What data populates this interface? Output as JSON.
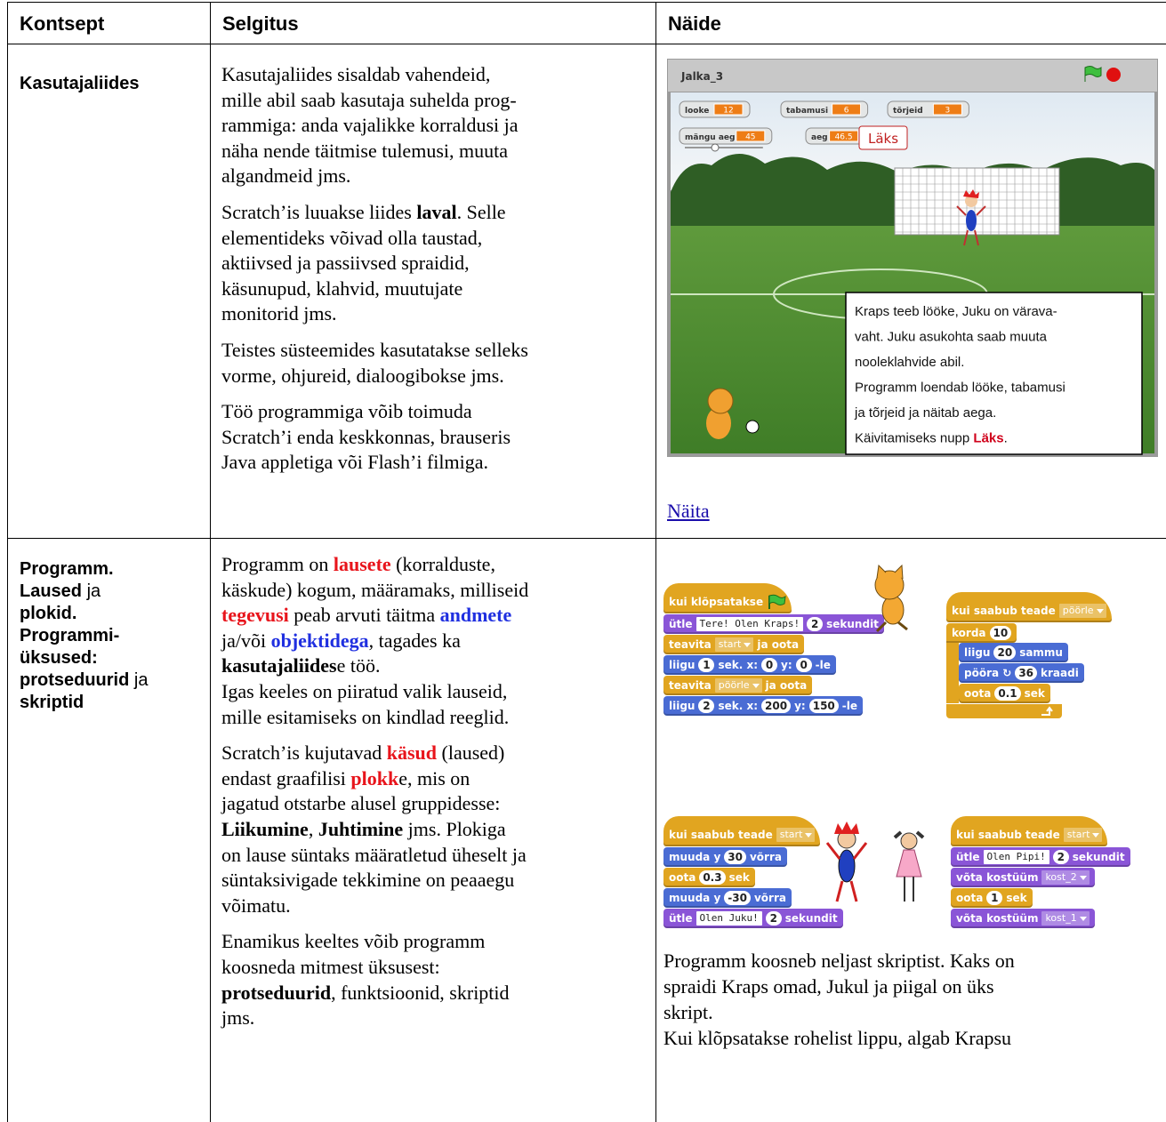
{
  "table": {
    "header": [
      "Kontsept",
      "Selgitus",
      "Näide"
    ],
    "rows": [
      {
        "concept": [
          [
            {
              "text": "Kasutajaliides",
              "bold": true
            }
          ]
        ],
        "explanation": [
          [
            "Kasutajaliides sisaldab vahendeid,",
            "mille abil saab kasutaja suhelda prog-",
            "rammiga: anda vajalikke korraldusi ja",
            "näha nende täitmise tulemusi, muuta",
            "algandmeid jms."
          ],
          [
            [
              "Scratch’is luuakse liides ",
              {
                "text": "laval",
                "bold": true
              },
              ". Selle"
            ],
            "elementideks võivad olla taustad,",
            "aktiivsed ja passiivsed spraidid,",
            "käsunupud, klahvid, muutujate",
            "monitorid jms."
          ],
          [
            "Teistes süsteemides kasutatakse selleks",
            "vorme, ohjureid, dialoogibokse jms."
          ],
          [
            "Töö programmiga võib toimuda",
            "Scratch’i enda keskkonnas, brauseris",
            "Java appletiga või Flash’i filmiga."
          ]
        ],
        "example": {
          "stage": {
            "title": "Jalka_3",
            "monitors": [
              {
                "label": "looke",
                "value": 12
              },
              {
                "label": "tabamusi",
                "value": 6
              },
              {
                "label": "tõrjeid",
                "value": 3
              },
              {
                "label": "mängu aeg",
                "value": 45
              },
              {
                "label": "aeg",
                "value": 46.5
              }
            ],
            "button": "Läks",
            "caption": [
              "Kraps teeb lööke, Juku on värava-",
              "vaht. Juku asukohta saab muuta",
              "nooleklahvide abil.",
              "Programm loendab lööke, tabamusi",
              "ja tõrjeid ja näitab aega.",
              [
                "Käivitamiseks nupp ",
                {
                  "text": "Läks",
                  "bold": true,
                  "color": "#d0021b"
                },
                "."
              ]
            ]
          },
          "link": "Näita"
        }
      },
      {
        "concept": [
          [
            {
              "text": "Programm.",
              "bold": true
            }
          ],
          [
            {
              "text": "Laused",
              "bold": true
            },
            " ja"
          ],
          [
            {
              "text": "plokid.",
              "bold": true
            }
          ],
          [
            {
              "text": "Programmi-",
              "bold": true
            }
          ],
          [
            {
              "text": "üksused:",
              "bold": true
            }
          ],
          [
            {
              "text": "protseduurid",
              "bold": true
            },
            " ja"
          ],
          [
            {
              "text": "skriptid",
              "bold": true
            }
          ]
        ],
        "explanation": [
          [
            [
              "Programm on ",
              {
                "text": "lausete",
                "bold": true,
                "color": "#e8141b"
              },
              " (korralduste,"
            ],
            "käskude) kogum, määramaks, milliseid",
            [
              {
                "text": "tegevusi",
                "bold": true,
                "color": "#e8141b"
              },
              " peab arvuti täitma ",
              {
                "text": "andmete",
                "bold": true,
                "color": "#1f2fe0"
              }
            ],
            [
              "ja/või ",
              {
                "text": "objektidega",
                "bold": true,
                "color": "#1f2fe0"
              },
              ", tagades ka"
            ],
            [
              {
                "text": "kasutajaliides",
                "bold": true
              },
              "e töö."
            ],
            "Igas keeles on piiratud valik lauseid,",
            "mille esitamiseks on kindlad reeglid."
          ],
          [
            [
              "Scratch’is kujutavad ",
              {
                "text": "käsud",
                "bold": true,
                "color": "#e8141b"
              },
              " (laused)"
            ],
            [
              "endast graafilisi ",
              {
                "text": "plokk",
                "bold": true,
                "color": "#e8141b"
              },
              "e, mis on"
            ],
            "jagatud otstarbe alusel gruppidesse:",
            [
              {
                "text": "Liikumine",
                "bold": true
              },
              ", ",
              {
                "text": "Juhtimine",
                "bold": true
              },
              " jms. Plokiga"
            ],
            "on lause süntaks määratletud üheselt ja",
            "süntaksivigade tekkimine on peaaegu",
            "võimatu."
          ],
          [
            "Enamikus keeltes võib programm",
            "koosneda mitmest üksusest:",
            [
              {
                "text": "protseduurid",
                "bold": true
              },
              ", funktsioonid, skriptid"
            ],
            "jms."
          ]
        ],
        "example": {
          "scripts": [
            {
              "blocks": [
                {
                  "color": "#e1a520",
                  "hat": true,
                  "flag": true,
                  "parts": [
                    "kui klõpsatakse"
                  ]
                },
                {
                  "color": "#8a55d7",
                  "parts": [
                    "ütle",
                    {
                      "input": "Tere! Olen Kraps!",
                      "kind": "text"
                    },
                    {
                      "input": 2,
                      "kind": "num"
                    },
                    "sekundit"
                  ]
                },
                {
                  "color": "#e1a520",
                  "parts": [
                    "teavita",
                    {
                      "input": "start",
                      "kind": "menu"
                    },
                    "ja oota"
                  ]
                },
                {
                  "color": "#4a6cd4",
                  "parts": [
                    "liigu",
                    {
                      "input": 1,
                      "kind": "num"
                    },
                    "sek. x:",
                    {
                      "input": 0,
                      "kind": "num"
                    },
                    "y:",
                    {
                      "input": 0,
                      "kind": "num"
                    },
                    "-le"
                  ]
                },
                {
                  "color": "#e1a520",
                  "parts": [
                    "teavita",
                    {
                      "input": "pöörle",
                      "kind": "menu"
                    },
                    "ja oota"
                  ]
                },
                {
                  "color": "#4a6cd4",
                  "parts": [
                    "liigu",
                    {
                      "input": 2,
                      "kind": "num"
                    },
                    "sek. x:",
                    {
                      "input": 200,
                      "kind": "num"
                    },
                    "y:",
                    {
                      "input": 150,
                      "kind": "num"
                    },
                    "-le"
                  ]
                }
              ]
            },
            {
              "blocks": [
                {
                  "color": "#e1a520",
                  "hat": true,
                  "parts": [
                    "kui saabub teade",
                    {
                      "input": "pöörle",
                      "kind": "menu"
                    }
                  ]
                },
                {
                  "color": "#e1a520",
                  "parts": [
                    "korda",
                    {
                      "input": 10,
                      "kind": "num"
                    }
                  ],
                  "inner": [
                    {
                      "color": "#4a6cd4",
                      "parts": [
                        "liigu",
                        {
                          "input": 20,
                          "kind": "num"
                        },
                        "sammu"
                      ]
                    },
                    {
                      "color": "#4a6cd4",
                      "parts": [
                        "pööra ↻",
                        {
                          "input": 36,
                          "kind": "num"
                        },
                        "kraadi"
                      ]
                    },
                    {
                      "color": "#e1a520",
                      "parts": [
                        "oota",
                        {
                          "input": 0.1,
                          "kind": "num"
                        },
                        "sek"
                      ]
                    }
                  ]
                }
              ]
            },
            {
              "blocks": [
                {
                  "color": "#e1a520",
                  "hat": true,
                  "parts": [
                    "kui saabub teade",
                    {
                      "input": "start",
                      "kind": "menu"
                    }
                  ]
                },
                {
                  "color": "#4a6cd4",
                  "parts": [
                    "muuda y",
                    {
                      "input": 30,
                      "kind": "num"
                    },
                    "võrra"
                  ]
                },
                {
                  "color": "#e1a520",
                  "parts": [
                    "oota",
                    {
                      "input": 0.3,
                      "kind": "num"
                    },
                    "sek"
                  ]
                },
                {
                  "color": "#4a6cd4",
                  "parts": [
                    "muuda y",
                    {
                      "input": -30,
                      "kind": "num"
                    },
                    "võrra"
                  ]
                },
                {
                  "color": "#8a55d7",
                  "parts": [
                    "ütle",
                    {
                      "input": "Olen Juku!",
                      "kind": "text"
                    },
                    {
                      "input": 2,
                      "kind": "num"
                    },
                    "sekundit"
                  ]
                }
              ]
            },
            {
              "blocks": [
                {
                  "color": "#e1a520",
                  "hat": true,
                  "parts": [
                    "kui saabub teade",
                    {
                      "input": "start",
                      "kind": "menu"
                    }
                  ]
                },
                {
                  "color": "#8a55d7",
                  "parts": [
                    "ütle",
                    {
                      "input": "Olen Pipi!",
                      "kind": "text"
                    },
                    {
                      "input": 2,
                      "kind": "num"
                    },
                    "sekundit"
                  ]
                },
                {
                  "color": "#8a55d7",
                  "parts": [
                    "võta kostüüm",
                    {
                      "input": "kost_2",
                      "kind": "menu"
                    }
                  ]
                },
                {
                  "color": "#e1a520",
                  "parts": [
                    "oota",
                    {
                      "input": 1,
                      "kind": "num"
                    },
                    "sek"
                  ]
                },
                {
                  "color": "#8a55d7",
                  "parts": [
                    "võta kostüüm",
                    {
                      "input": "kost_1",
                      "kind": "menu"
                    }
                  ]
                }
              ]
            }
          ],
          "text": [
            "Programm koosneb neljast skriptist. Kaks on",
            "spraidi Kraps omad, Jukul ja piigal on üks",
            "skript.",
            "Kui klõpsatakse rohelist lippu, algab Krapsu"
          ]
        }
      }
    ]
  }
}
